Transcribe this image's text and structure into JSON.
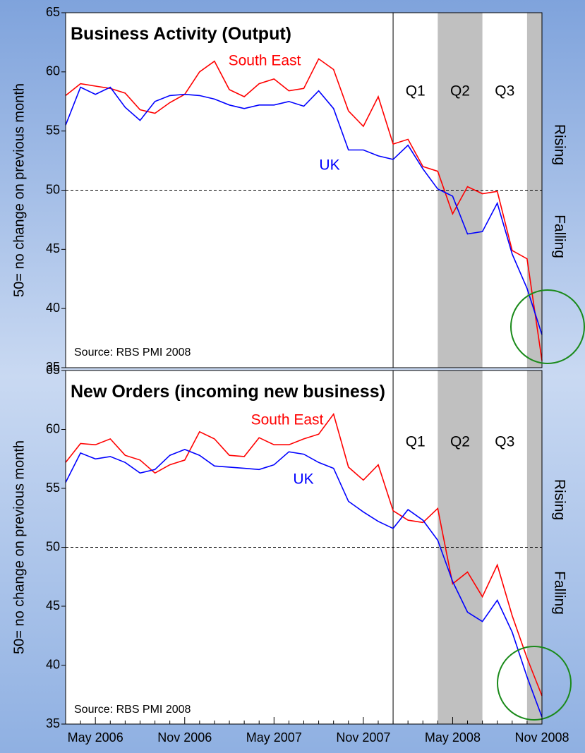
{
  "chart_data": [
    {
      "type": "line",
      "title": "Business Activity (Output)",
      "ylabel": "50= no change on previous month",
      "source": "Source: RBS PMI 2008",
      "rising_label": "Rising",
      "falling_label": "Falling",
      "ylim": [
        35,
        65
      ],
      "yticks": [
        35,
        40,
        45,
        50,
        55,
        60,
        65
      ],
      "ref_line": 50,
      "divider": 22,
      "bands": [
        {
          "from": 25,
          "to": 28
        },
        {
          "from": 31,
          "to": 32
        }
      ],
      "quarters": [
        {
          "label": "Q1",
          "from": 22,
          "to": 25
        },
        {
          "label": "Q2",
          "from": 25,
          "to": 28
        },
        {
          "label": "Q3",
          "from": 28,
          "to": 31
        }
      ],
      "series": [
        {
          "name": "South East",
          "color": "#ff0000",
          "values": [
            58.0,
            59.0,
            58.8,
            58.6,
            58.2,
            56.8,
            56.5,
            57.4,
            58.1,
            60.0,
            60.9,
            58.5,
            57.9,
            59.0,
            59.4,
            58.4,
            58.6,
            61.1,
            60.2,
            56.7,
            55.4,
            57.9,
            53.9,
            54.3,
            52.0,
            51.6,
            48.0,
            50.3,
            49.7,
            49.9,
            44.9,
            44.2,
            35.6
          ]
        },
        {
          "name": "UK",
          "color": "#0000ff",
          "values": [
            55.5,
            58.7,
            58.1,
            58.7,
            57.0,
            55.9,
            57.5,
            58.0,
            58.1,
            58.0,
            57.7,
            57.2,
            56.9,
            57.2,
            57.2,
            57.5,
            57.1,
            58.4,
            56.9,
            53.4,
            53.4,
            52.9,
            52.6,
            53.8,
            51.8,
            50.1,
            49.5,
            46.3,
            46.5,
            48.9,
            44.6,
            41.7,
            37.8
          ]
        }
      ]
    },
    {
      "type": "line",
      "title": "New Orders (incoming new business)",
      "ylabel": "50= no change on previous month",
      "source": "Source: RBS PMI 2008",
      "rising_label": "Rising",
      "falling_label": "Falling",
      "categories": [
        null,
        null,
        "May 2006",
        null,
        null,
        null,
        null,
        null,
        "Nov 2006",
        null,
        null,
        null,
        null,
        null,
        "May 2007",
        null,
        null,
        null,
        null,
        null,
        "Nov 2007",
        null,
        null,
        null,
        null,
        null,
        "May 2008",
        null,
        null,
        null,
        null,
        null,
        "Nov 2008"
      ],
      "ylim": [
        35,
        65
      ],
      "yticks": [
        35,
        40,
        45,
        50,
        55,
        60,
        65
      ],
      "ref_line": 50,
      "divider": 22,
      "bands": [
        {
          "from": 25,
          "to": 28
        },
        {
          "from": 31,
          "to": 32
        }
      ],
      "quarters": [
        {
          "label": "Q1",
          "from": 22,
          "to": 25
        },
        {
          "label": "Q2",
          "from": 25,
          "to": 28
        },
        {
          "label": "Q3",
          "from": 28,
          "to": 31
        }
      ],
      "series": [
        {
          "name": "South East",
          "color": "#ff0000",
          "values": [
            57.2,
            58.8,
            58.7,
            59.2,
            57.8,
            57.4,
            56.3,
            57.0,
            57.4,
            59.8,
            59.2,
            57.8,
            57.7,
            59.3,
            58.7,
            58.7,
            59.2,
            59.6,
            61.3,
            56.8,
            55.7,
            57.0,
            53.1,
            52.3,
            52.1,
            53.3,
            46.9,
            47.9,
            45.8,
            48.5,
            44.2,
            40.6,
            37.4
          ]
        },
        {
          "name": "UK",
          "color": "#0000ff",
          "values": [
            55.5,
            58.0,
            57.5,
            57.7,
            57.2,
            56.3,
            56.6,
            57.8,
            58.3,
            57.8,
            56.9,
            56.8,
            56.7,
            56.6,
            57.0,
            58.1,
            57.9,
            57.2,
            56.7,
            53.9,
            53.0,
            52.2,
            51.6,
            53.2,
            52.3,
            50.6,
            47.1,
            44.5,
            43.7,
            45.5,
            42.8,
            39.0,
            35.6
          ]
        }
      ]
    }
  ]
}
